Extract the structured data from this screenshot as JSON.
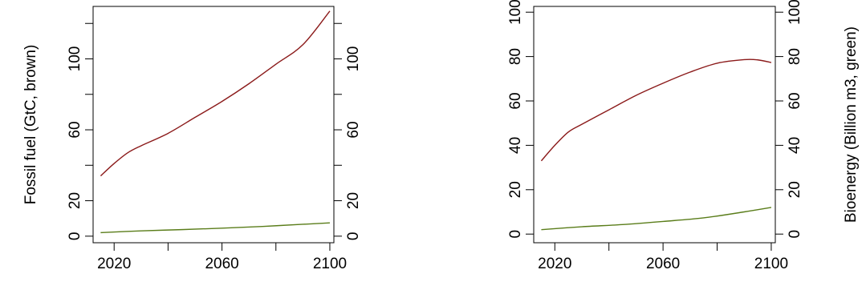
{
  "colors": {
    "fossil": "#8b1a1a",
    "bio": "#5a7d1a",
    "axis": "#000000"
  },
  "chart_data": [
    {
      "type": "line",
      "title": "",
      "xlabel": "",
      "ylabel": "Fossil fuel (GtC, brown)",
      "ylabel_right": "",
      "xlim": [
        2012.2,
        2101.5
      ],
      "ylim": [
        -3.7,
        129.6
      ],
      "xticks": [
        2020,
        2040,
        2060,
        2080,
        2100
      ],
      "xtick_labels": [
        "2020",
        "",
        "2060",
        "",
        "2100"
      ],
      "yticks": [
        0,
        20,
        40,
        60,
        80,
        100,
        120
      ],
      "ytick_labels": [
        "0",
        "20",
        "",
        "60",
        "",
        "100",
        ""
      ],
      "grid": false,
      "series": [
        {
          "color": "fossil",
          "x": [
            2015,
            2020,
            2025,
            2030,
            2040,
            2050,
            2060,
            2070,
            2080,
            2090,
            2100
          ],
          "y": [
            34,
            41,
            47,
            51,
            58,
            67,
            76,
            86,
            97,
            108,
            127
          ]
        },
        {
          "color": "bio",
          "x": [
            2015,
            2030,
            2045,
            2060,
            2075,
            2090,
            2100
          ],
          "y": [
            2,
            3,
            3.7,
            4.5,
            5.5,
            6.7,
            7.5
          ]
        }
      ]
    },
    {
      "type": "line",
      "title": "",
      "xlabel": "",
      "ylabel": "",
      "ylabel_right": "Bioenergy (Billion m3, green)",
      "xlim": [
        2012.2,
        2101.5
      ],
      "ylim": [
        -3.9,
        102.6
      ],
      "xticks": [
        2020,
        2040,
        2060,
        2080,
        2100
      ],
      "xtick_labels": [
        "2020",
        "",
        "2060",
        "",
        "2100"
      ],
      "yticks": [
        0,
        20,
        40,
        60,
        80,
        100
      ],
      "ytick_labels": [
        "0",
        "20",
        "40",
        "60",
        "80",
        "100"
      ],
      "grid": false,
      "series": [
        {
          "color": "fossil",
          "x": [
            2015,
            2020,
            2025,
            2030,
            2040,
            2050,
            2060,
            2070,
            2080,
            2090,
            2095,
            2100
          ],
          "y": [
            33,
            40,
            46,
            49.5,
            56,
            62.5,
            68,
            73,
            77,
            78.6,
            78.5,
            77.3
          ]
        },
        {
          "color": "bio",
          "x": [
            2015,
            2030,
            2045,
            2060,
            2075,
            2090,
            2100
          ],
          "y": [
            2,
            3.3,
            4.3,
            5.7,
            7.3,
            10,
            12
          ]
        }
      ]
    }
  ]
}
